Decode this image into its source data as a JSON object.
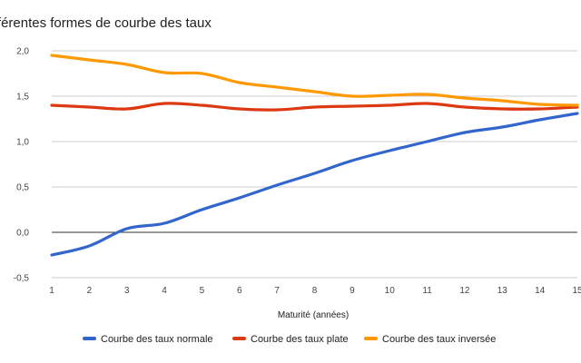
{
  "chart_data": {
    "type": "line",
    "title": "fférentes formes de courbe des taux",
    "xlabel": "Maturité (années)",
    "ylabel": "",
    "x": [
      1,
      2,
      3,
      4,
      5,
      6,
      7,
      8,
      9,
      10,
      11,
      12,
      13,
      14,
      15
    ],
    "x_tick_labels": [
      "1",
      "2",
      "3",
      "4",
      "5",
      "6",
      "7",
      "8",
      "9",
      "10",
      "11",
      "12",
      "13",
      "14",
      "15"
    ],
    "ylim": [
      -0.5,
      2.0
    ],
    "y_ticks": [
      -0.5,
      0.0,
      0.5,
      1.0,
      1.5,
      2.0
    ],
    "y_tick_labels": [
      "-0,5",
      "0,0",
      "0,5",
      "1,0",
      "1,5",
      "2,0"
    ],
    "grid": true,
    "legend_position": "bottom",
    "series": [
      {
        "name": "Courbe des taux normale",
        "color": "#3366cc",
        "values": [
          -0.25,
          -0.15,
          0.04,
          0.1,
          0.25,
          0.38,
          0.52,
          0.65,
          0.79,
          0.9,
          1.0,
          1.1,
          1.16,
          1.24,
          1.31
        ]
      },
      {
        "name": "Courbe des taux plate",
        "color": "#dc3912",
        "values": [
          1.4,
          1.38,
          1.36,
          1.42,
          1.4,
          1.36,
          1.35,
          1.38,
          1.39,
          1.4,
          1.42,
          1.38,
          1.36,
          1.36,
          1.38
        ]
      },
      {
        "name": "Courbe des taux inversée",
        "color": "#ff9900",
        "values": [
          1.95,
          1.9,
          1.85,
          1.76,
          1.75,
          1.65,
          1.6,
          1.55,
          1.5,
          1.51,
          1.52,
          1.48,
          1.45,
          1.41,
          1.4
        ]
      }
    ]
  }
}
